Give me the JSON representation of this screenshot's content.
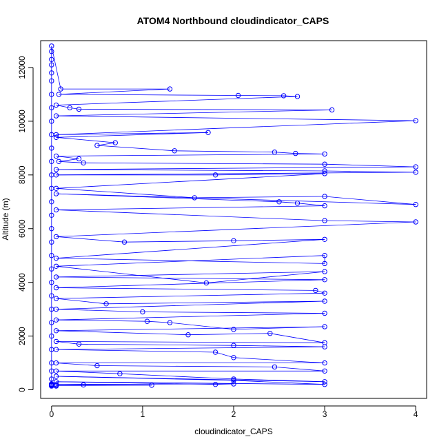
{
  "chart_data": {
    "type": "line",
    "title": "ATOM4 Northbound cloudindicator_CAPS",
    "xlabel": "cloudindicator_CAPS",
    "ylabel": "Altitude (m)",
    "xlim": [
      -0.12,
      4.12
    ],
    "ylim": [
      -320,
      13000
    ],
    "x_ticks": [
      "0",
      "1",
      "2",
      "3",
      "4"
    ],
    "y_ticks": [
      "0",
      "2000",
      "4000",
      "6000",
      "8000",
      "10000",
      "12000"
    ],
    "series_color": "#0000ff",
    "marker": "open-circle",
    "series": [
      {
        "x": [
          0,
          0,
          0,
          0,
          0,
          0,
          0,
          0,
          0,
          0,
          0,
          0,
          0,
          0,
          0,
          0,
          0,
          0,
          0,
          0,
          0,
          0,
          0,
          0,
          0,
          0,
          0,
          0,
          0,
          0,
          0.1,
          1.3,
          0.08,
          2.05,
          2.55,
          2.7,
          0.05,
          0.2,
          0.3,
          3.08,
          0.05,
          4.0,
          0.05,
          1.72,
          0.05,
          0.7,
          0.5,
          1.35,
          2.45,
          2.68,
          3.0,
          0.05,
          0.3,
          0.08,
          0.35,
          3.0,
          4.0,
          0.05,
          3.0,
          4.0,
          0.05,
          1.8,
          3.0,
          0.05,
          1.57,
          3.0,
          4.0,
          0.05,
          2.5,
          2.7,
          3.0,
          0.05,
          3.0,
          4.0,
          0.05,
          0.8,
          2.0,
          3.0,
          0.05,
          3.0,
          3.0,
          0.05,
          1.7,
          3.0,
          0.05,
          3.0,
          0.05,
          2.9,
          3.0,
          0.05,
          0.6,
          3.0,
          0.05,
          1.0,
          3.0,
          0.05,
          1.05,
          1.3,
          2.0,
          3.0,
          0.05,
          1.5,
          2.4,
          3.0,
          0.05,
          0.3,
          2.0,
          3.0,
          0.05,
          1.8,
          2.0,
          3.0,
          0.05,
          0.5,
          2.45,
          3.0,
          0.05,
          0.75,
          2.0,
          3.0,
          0.05,
          2.0,
          3.0,
          0.05,
          1.8,
          2.0,
          0.05,
          0.35,
          1.1,
          0.05,
          0.05,
          0.05,
          0,
          0,
          0,
          0,
          0,
          0,
          0,
          0,
          0
        ],
        "y": [
          180,
          400,
          700,
          1000,
          1500,
          2000,
          2500,
          3000,
          3500,
          4000,
          4500,
          5000,
          5500,
          6000,
          6500,
          7000,
          7500,
          8000,
          8500,
          9000,
          9500,
          10000,
          10500,
          11000,
          11500,
          11800,
          12100,
          12300,
          12600,
          12800,
          11200,
          11200,
          11000,
          10960,
          10950,
          10920,
          10600,
          10500,
          10450,
          10420,
          10200,
          10020,
          9500,
          9580,
          9400,
          9200,
          9100,
          8900,
          8850,
          8800,
          8780,
          8700,
          8600,
          8500,
          8450,
          8400,
          8300,
          8200,
          8150,
          8100,
          8000,
          8000,
          8050,
          7500,
          7150,
          7200,
          6900,
          7300,
          7000,
          6950,
          6850,
          6700,
          6300,
          6250,
          5700,
          5500,
          5550,
          5600,
          4900,
          4700,
          5000,
          4600,
          3980,
          4400,
          4200,
          4100,
          3800,
          3700,
          3600,
          3400,
          3200,
          3300,
          3000,
          2900,
          2850,
          2600,
          2550,
          2500,
          2250,
          2350,
          2200,
          2050,
          2100,
          1750,
          1800,
          1700,
          1650,
          1600,
          1500,
          1400,
          1200,
          1000,
          1000,
          900,
          850,
          700,
          700,
          600,
          400,
          300,
          500,
          350,
          200,
          300,
          200,
          220,
          200,
          180,
          170,
          160,
          150,
          140,
          140,
          150,
          160,
          170,
          180,
          190,
          200,
          210,
          220
        ]
      }
    ]
  }
}
